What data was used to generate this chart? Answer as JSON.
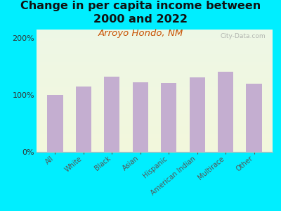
{
  "title": "Change in per capita income between\n2000 and 2022",
  "subtitle": "Arroyo Hondo, NM",
  "categories": [
    "All",
    "White",
    "Black",
    "Asian",
    "Hispanic",
    "American Indian",
    "Multirace",
    "Other"
  ],
  "values": [
    100,
    115,
    132,
    122,
    121,
    131,
    141,
    120
  ],
  "bar_color": "#c4aed0",
  "title_fontsize": 11.5,
  "subtitle_fontsize": 9.5,
  "subtitle_color": "#c85000",
  "background_color": "#00eeff",
  "ylabel_ticks": [
    0,
    100,
    200
  ],
  "ylabel_labels": [
    "0%",
    "100%",
    "200%"
  ],
  "ylim": [
    0,
    215
  ],
  "watermark": "City-Data.com"
}
